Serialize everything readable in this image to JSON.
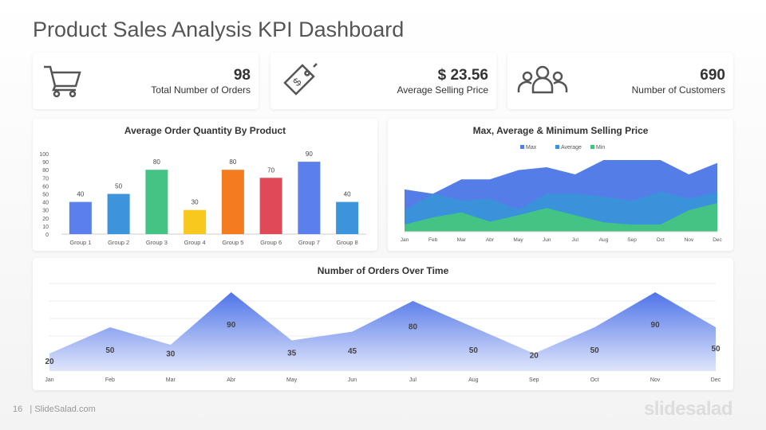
{
  "title": "Product Sales Analysis KPI Dashboard",
  "kpis": [
    {
      "value": "98",
      "label": "Total Number of Orders",
      "icon": "shopping-cart-icon"
    },
    {
      "value": "$ 23.56",
      "label": "Average Selling Price",
      "icon": "price-tag-icon"
    },
    {
      "value": "690",
      "label": "Number of Customers",
      "icon": "users-icon"
    }
  ],
  "chart_data": [
    {
      "type": "bar",
      "title": "Average Order Quantity  By Product",
      "categories": [
        "Group 1",
        "Group 2",
        "Group 3",
        "Group 4",
        "Group 5",
        "Group 6",
        "Group 7",
        "Group 8"
      ],
      "values": [
        40,
        50,
        80,
        30,
        80,
        70,
        90,
        40
      ],
      "colors": [
        "#5b7fec",
        "#3b94dc",
        "#43c384",
        "#f9c81e",
        "#f47b1f",
        "#e04a58",
        "#5b7fec",
        "#3b94dc"
      ],
      "ylim": [
        0,
        100
      ],
      "yticks": [
        0,
        10,
        20,
        30,
        40,
        50,
        60,
        70,
        80,
        90,
        100
      ]
    },
    {
      "type": "area",
      "title": "Max, Average & Minimum  Selling Price",
      "categories": [
        "Jan",
        "Feb",
        "Mar",
        "Abr",
        "May",
        "Jun",
        "Jul",
        "Aug",
        "Sep",
        "Oct",
        "Nov",
        "Dec"
      ],
      "legend": "top",
      "series": [
        {
          "name": "Max",
          "color": "#557de8",
          "values": [
            59,
            53,
            73,
            73,
            86,
            90,
            80,
            100,
            100,
            100,
            80,
            96
          ]
        },
        {
          "name": "Average",
          "color": "#3a93da",
          "values": [
            30,
            53,
            43,
            46,
            31,
            53,
            53,
            49,
            43,
            56,
            46,
            55
          ]
        },
        {
          "name": "Min",
          "color": "#43c384",
          "values": [
            10,
            20,
            27,
            14,
            23,
            33,
            23,
            13,
            10,
            10,
            30,
            40
          ]
        }
      ],
      "ylim": [
        0,
        100
      ]
    },
    {
      "type": "area",
      "title": "Number of Orders Over Time",
      "categories": [
        "Jan",
        "Feb",
        "Mar",
        "Abr",
        "May",
        "Jun",
        "Jul",
        "Aug",
        "Sep",
        "Oct",
        "Nov",
        "Dec"
      ],
      "values": [
        20,
        50,
        30,
        90,
        35,
        45,
        80,
        50,
        20,
        50,
        90,
        50
      ],
      "color": "#4f74e8",
      "ylim": [
        0,
        100
      ],
      "grid": true
    }
  ],
  "footer": {
    "page": "16",
    "site": "| SlideSalad.com",
    "logo": "slidesalad"
  }
}
